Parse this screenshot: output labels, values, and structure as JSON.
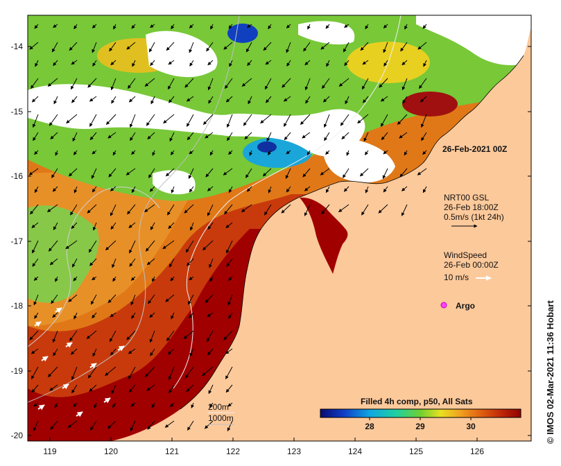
{
  "title_date": "26-Feb-2021 00Z",
  "current_legend": {
    "line1": "NRT00 GSL",
    "line2": "26-Feb 18:00Z",
    "line3": "0.5m/s (1kt 24h)"
  },
  "wind_legend": {
    "line1": "WindSpeed",
    "line2": "26-Feb 00:00Z",
    "line3": "10 m/s"
  },
  "argo_label": "Argo",
  "colorbar": {
    "title": "Filled 4h comp, p50, All Sats",
    "ticks": [
      "28",
      "29",
      "30"
    ]
  },
  "isobaths": [
    "200m",
    "1000m"
  ],
  "axes": {
    "x_ticks": [
      "119",
      "120",
      "121",
      "122",
      "123",
      "124",
      "125",
      "126"
    ],
    "y_ticks": [
      "-14",
      "-15",
      "-16",
      "-17",
      "-18",
      "-19",
      "-20"
    ]
  },
  "credit": "© IMOS 02-Mar-2021 11:36 Hobart",
  "colors": {
    "land": "#fcc99b",
    "sst_warm": "#a00000",
    "sst_cool": "#0a2a8a",
    "cloud": "#ffffff"
  }
}
